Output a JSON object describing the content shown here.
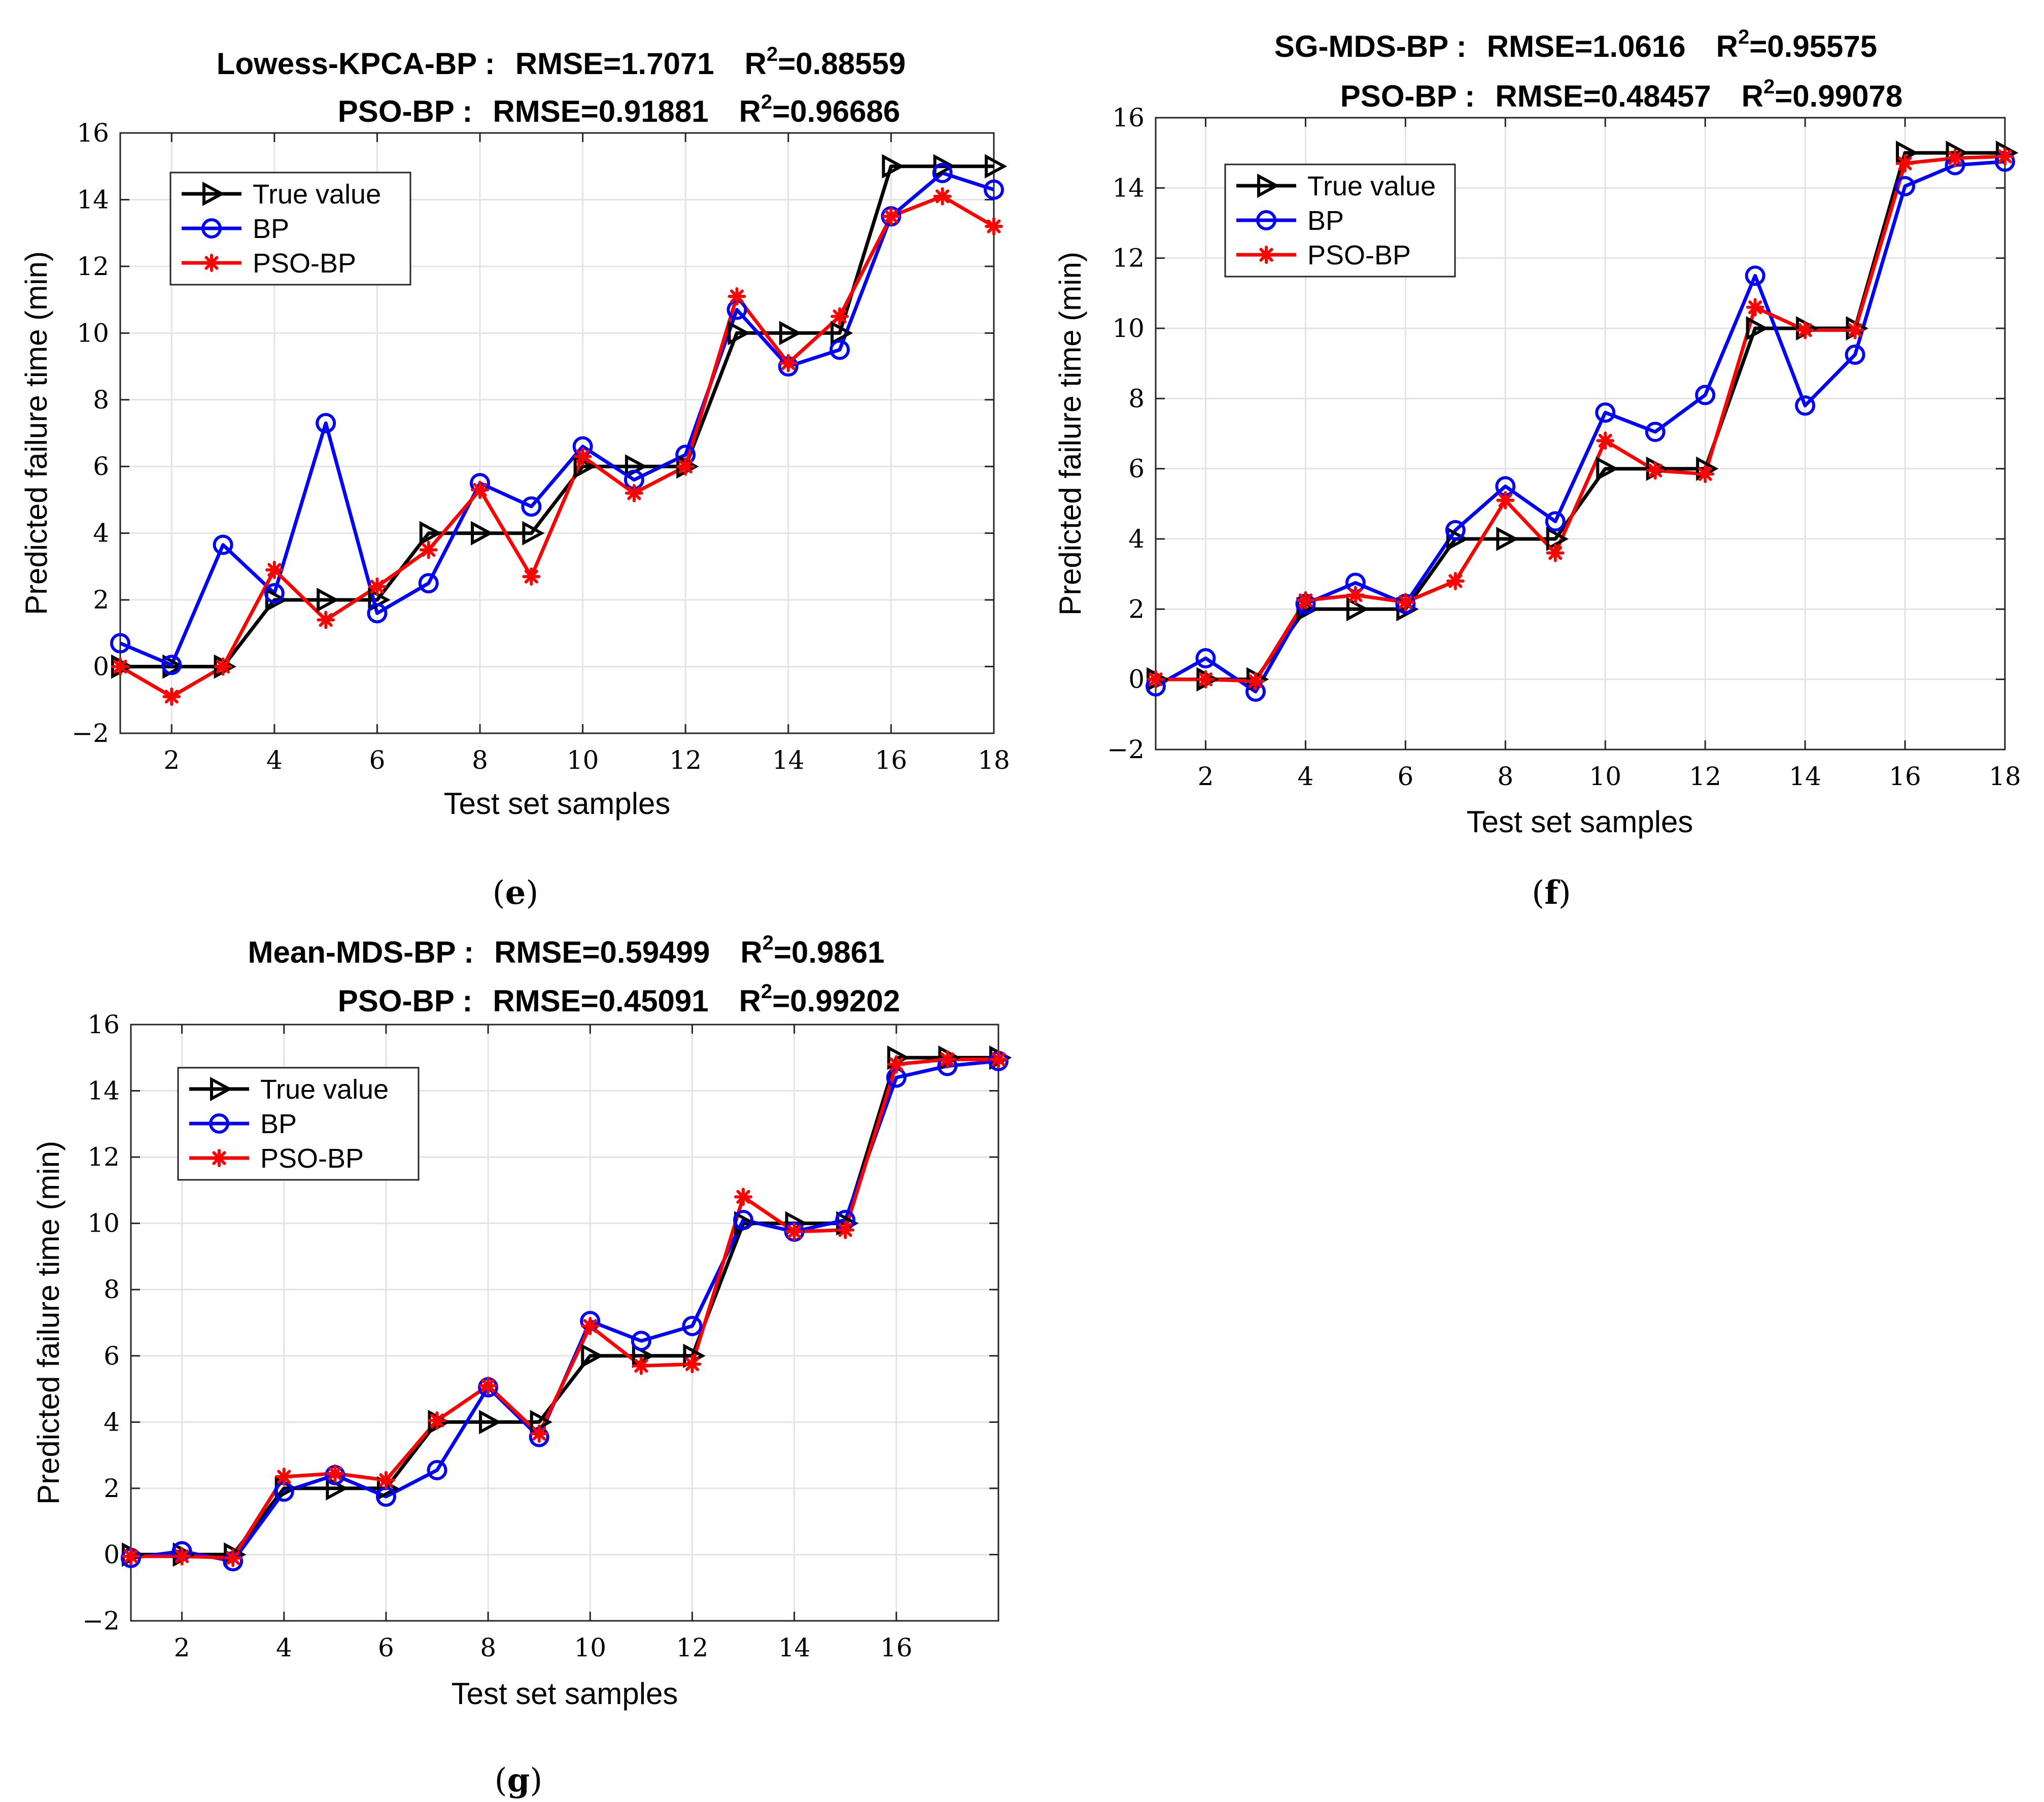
{
  "figure": {
    "background": "#ffffff"
  },
  "colors": {
    "true_value": "#000000",
    "bp": "#0000ff",
    "pso_bp": "#ff0000",
    "grid": "#e3e3e3",
    "axes": "#262626"
  },
  "chart_data": [
    {
      "panel_label": "(e)",
      "panel_letter": "e",
      "type": "line",
      "title_lines": [
        {
          "method": "Lowess-KPCA-BP :",
          "rmse": "RMSE=1.7071",
          "r2_prefix": "R",
          "r2_sup": "2",
          "r2_value": "=0.88559"
        },
        {
          "method": "PSO-BP :",
          "rmse": "RMSE=0.91881",
          "r2_prefix": "R",
          "r2_sup": "2",
          "r2_value": "=0.96686"
        }
      ],
      "xlabel": "Test set samples",
      "ylabel": "Predicted failure time (min)",
      "xlim": [
        1,
        18
      ],
      "ylim": [
        -2,
        16
      ],
      "xticks": [
        2,
        4,
        6,
        8,
        10,
        12,
        14,
        16,
        18
      ],
      "yticks": [
        -2,
        0,
        2,
        4,
        6,
        8,
        10,
        12,
        14,
        16
      ],
      "grid": true,
      "legend_position": "top-left",
      "x": [
        1,
        2,
        3,
        4,
        5,
        6,
        7,
        8,
        9,
        10,
        11,
        12,
        13,
        14,
        15,
        16,
        17,
        18
      ],
      "series": [
        {
          "name": "True value",
          "marker": "triangle-right",
          "values": [
            0,
            0,
            0,
            2,
            2,
            2,
            4,
            4,
            4,
            6,
            6,
            6,
            10,
            10,
            10,
            15,
            15,
            15
          ]
        },
        {
          "name": "BP",
          "marker": "circle",
          "values": [
            0.7,
            0.05,
            3.65,
            2.2,
            7.3,
            1.6,
            2.5,
            5.5,
            4.8,
            6.6,
            5.6,
            6.35,
            10.7,
            9.0,
            9.5,
            13.5,
            14.8,
            14.3
          ]
        },
        {
          "name": "PSO-BP",
          "marker": "asterisk",
          "values": [
            0.0,
            -0.9,
            0.0,
            2.9,
            1.4,
            2.4,
            3.5,
            5.3,
            2.7,
            6.3,
            5.2,
            6.0,
            11.1,
            9.1,
            10.5,
            13.5,
            14.1,
            13.2
          ]
        }
      ]
    },
    {
      "panel_label": "(f)",
      "panel_letter": "f",
      "type": "line",
      "title_lines": [
        {
          "method": "SG-MDS-BP :",
          "rmse": "RMSE=1.0616",
          "r2_prefix": "R",
          "r2_sup": "2",
          "r2_value": "=0.95575"
        },
        {
          "method": "PSO-BP :",
          "rmse": "RMSE=0.48457",
          "r2_prefix": "R",
          "r2_sup": "2",
          "r2_value": "=0.99078"
        }
      ],
      "xlabel": "Test set samples",
      "ylabel": "Predicted failure time (min)",
      "xlim": [
        1,
        18
      ],
      "ylim": [
        -2,
        16
      ],
      "xticks": [
        2,
        4,
        6,
        8,
        10,
        12,
        14,
        16,
        18
      ],
      "yticks": [
        -2,
        0,
        2,
        4,
        6,
        8,
        10,
        12,
        14,
        16
      ],
      "grid": true,
      "legend_position": "top-left",
      "x": [
        1,
        2,
        3,
        4,
        5,
        6,
        7,
        8,
        9,
        10,
        11,
        12,
        13,
        14,
        15,
        16,
        17,
        18
      ],
      "series": [
        {
          "name": "True value",
          "marker": "triangle-right",
          "values": [
            0,
            0,
            0,
            2,
            2,
            2,
            4,
            4,
            4,
            6,
            6,
            6,
            10,
            10,
            10,
            15,
            15,
            15
          ]
        },
        {
          "name": "BP",
          "marker": "circle",
          "values": [
            -0.2,
            0.6,
            -0.35,
            2.15,
            2.75,
            2.15,
            4.25,
            5.5,
            4.5,
            7.6,
            7.05,
            8.1,
            11.5,
            7.8,
            9.25,
            14.05,
            14.65,
            14.75
          ]
        },
        {
          "name": "PSO-BP",
          "marker": "asterisk",
          "values": [
            0.0,
            0.0,
            -0.05,
            2.25,
            2.4,
            2.2,
            2.8,
            5.1,
            3.6,
            6.8,
            5.95,
            5.85,
            10.6,
            9.95,
            9.95,
            14.7,
            14.85,
            14.9
          ]
        }
      ]
    },
    {
      "panel_label": "(g)",
      "panel_letter": "g",
      "type": "line",
      "title_lines": [
        {
          "method": "Mean-MDS-BP :",
          "rmse": "RMSE=0.59499",
          "r2_prefix": "R",
          "r2_sup": "2",
          "r2_value": "=0.9861"
        },
        {
          "method": "PSO-BP :",
          "rmse": "RMSE=0.45091",
          "r2_prefix": "R",
          "r2_sup": "2",
          "r2_value": "=0.99202"
        }
      ],
      "xlabel": "Test set samples",
      "ylabel": "Predicted failure time (min)",
      "xlim": [
        1,
        18
      ],
      "ylim": [
        -2,
        16
      ],
      "xticks": [
        2,
        4,
        6,
        8,
        10,
        12,
        14,
        16
      ],
      "yticks": [
        -2,
        0,
        2,
        4,
        6,
        8,
        10,
        12,
        14,
        16
      ],
      "grid": true,
      "legend_position": "top-left",
      "x": [
        1,
        2,
        3,
        4,
        5,
        6,
        7,
        8,
        9,
        10,
        11,
        12,
        13,
        14,
        15,
        16,
        17,
        18
      ],
      "series": [
        {
          "name": "True value",
          "marker": "triangle-right",
          "values": [
            0,
            0,
            0,
            2,
            2,
            2,
            4,
            4,
            4,
            6,
            6,
            6,
            10,
            10,
            10,
            15,
            15,
            15
          ]
        },
        {
          "name": "BP",
          "marker": "circle",
          "values": [
            -0.1,
            0.1,
            -0.2,
            1.9,
            2.4,
            1.75,
            2.55,
            5.05,
            3.55,
            7.05,
            6.45,
            6.9,
            10.1,
            9.75,
            10.1,
            14.4,
            14.75,
            14.9
          ]
        },
        {
          "name": "PSO-BP",
          "marker": "asterisk",
          "values": [
            -0.05,
            -0.05,
            -0.1,
            2.35,
            2.45,
            2.25,
            4.05,
            5.1,
            3.65,
            6.9,
            5.7,
            5.75,
            10.8,
            9.75,
            9.8,
            14.8,
            14.95,
            14.95
          ]
        }
      ]
    }
  ]
}
